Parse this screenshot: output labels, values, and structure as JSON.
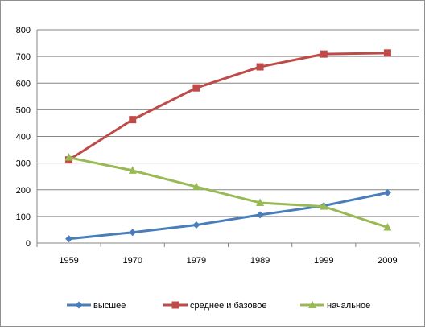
{
  "chart_data": {
    "type": "line",
    "title": "",
    "xlabel": "",
    "ylabel": "",
    "categories": [
      "1959",
      "1970",
      "1979",
      "1989",
      "1999",
      "2009"
    ],
    "ylim": [
      0,
      800
    ],
    "yticks": [
      0,
      100,
      200,
      300,
      400,
      500,
      600,
      700,
      800
    ],
    "grid": true,
    "legend_position": "bottom",
    "series": [
      {
        "name": "высшее",
        "color": "#4a7ebb",
        "marker": "diamond",
        "values": [
          16,
          40,
          68,
          106,
          140,
          189
        ]
      },
      {
        "name": "среднее и базовое",
        "color": "#be4b48",
        "marker": "square",
        "values": [
          312,
          463,
          582,
          661,
          709,
          713
        ]
      },
      {
        "name": "начальное",
        "color": "#98b954",
        "marker": "triangle",
        "values": [
          321,
          272,
          211,
          151,
          137,
          59
        ]
      }
    ]
  }
}
